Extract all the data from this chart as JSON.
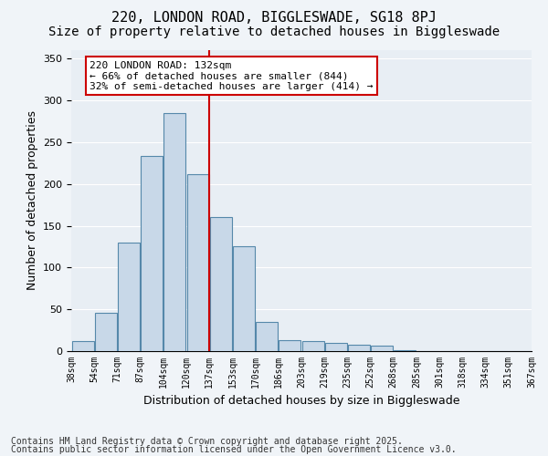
{
  "title_line1": "220, LONDON ROAD, BIGGLESWADE, SG18 8PJ",
  "title_line2": "Size of property relative to detached houses in Biggleswade",
  "xlabel": "Distribution of detached houses by size in Biggleswade",
  "ylabel": "Number of detached properties",
  "bin_labels": [
    "38sqm",
    "54sqm",
    "71sqm",
    "87sqm",
    "104sqm",
    "120sqm",
    "137sqm",
    "153sqm",
    "170sqm",
    "186sqm",
    "203sqm",
    "219sqm",
    "235sqm",
    "252sqm",
    "268sqm",
    "285sqm",
    "301sqm",
    "318sqm",
    "334sqm",
    "351sqm",
    "367sqm"
  ],
  "values": [
    12,
    46,
    130,
    233,
    285,
    212,
    160,
    126,
    35,
    13,
    12,
    10,
    8,
    7,
    1,
    0,
    0,
    0,
    0,
    0
  ],
  "bar_color": "#c8d8e8",
  "bar_edge_color": "#5588aa",
  "vline_color": "#cc0000",
  "annotation_text": "220 LONDON ROAD: 132sqm\n← 66% of detached houses are smaller (844)\n32% of semi-detached houses are larger (414) →",
  "annotation_box_color": "#ffffff",
  "annotation_box_edge": "#cc0000",
  "ylim": [
    0,
    360
  ],
  "yticks": [
    0,
    50,
    100,
    150,
    200,
    250,
    300,
    350
  ],
  "fig_bg_color": "#f0f4f8",
  "ax_bg_color": "#e8eef4",
  "footer_line1": "Contains HM Land Registry data © Crown copyright and database right 2025.",
  "footer_line2": "Contains public sector information licensed under the Open Government Licence v3.0.",
  "title_fontsize": 11,
  "subtitle_fontsize": 10,
  "axis_label_fontsize": 9,
  "tick_fontsize": 7,
  "annotation_fontsize": 8,
  "footer_fontsize": 7
}
